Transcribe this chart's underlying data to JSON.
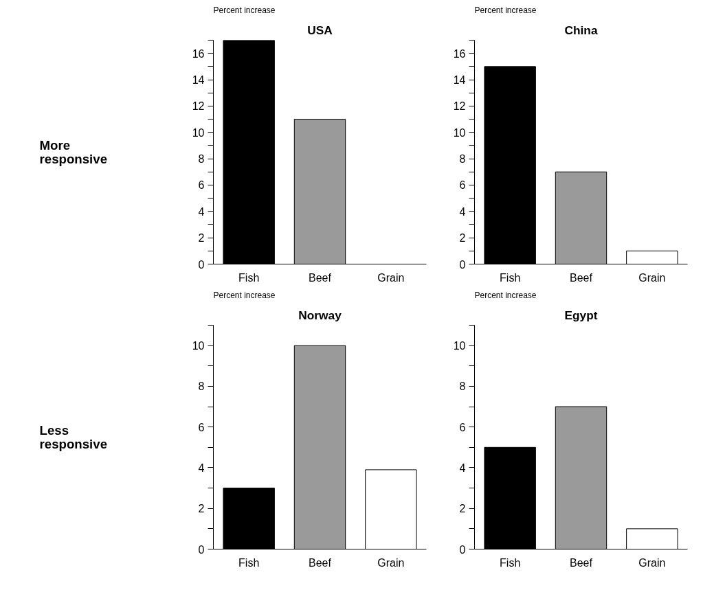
{
  "chart_data": [
    {
      "type": "other",
      "title": "More responsive"
    },
    {
      "type": "bar",
      "title": "USA",
      "ylabel": "Percent increase",
      "categories": [
        "Fish",
        "Beef",
        "Grain"
      ],
      "values": [
        17,
        11,
        null
      ],
      "colors": [
        "#000000",
        "#9a9a9a",
        null
      ],
      "ylim": [
        0,
        17
      ],
      "yticks": [
        0,
        {
          "value": 1,
          "label": null
        },
        2,
        {
          "value": 3,
          "label": null
        },
        4,
        {
          "value": 5,
          "label": null
        },
        6,
        {
          "value": 7,
          "label": null
        },
        8,
        {
          "value": 9,
          "label": null
        },
        10,
        {
          "value": 11,
          "label": null
        },
        12,
        {
          "value": 13,
          "label": null
        },
        14,
        {
          "value": 15,
          "label": null
        },
        16,
        {
          "value": 17,
          "label": null
        }
      ]
    },
    {
      "type": "bar",
      "title": "China",
      "ylabel": "Percent increase",
      "categories": [
        "Fish",
        "Beef",
        "Grain"
      ],
      "values": [
        15,
        7,
        1
      ],
      "colors": [
        "#000000",
        "#9a9a9a",
        "#ffffff"
      ],
      "ylim": [
        0,
        17
      ],
      "yticks": [
        0,
        {
          "value": 1,
          "label": null
        },
        2,
        {
          "value": 3,
          "label": null
        },
        4,
        {
          "value": 5,
          "label": null
        },
        6,
        {
          "value": 7,
          "label": null
        },
        8,
        {
          "value": 9,
          "label": null
        },
        10,
        {
          "value": 11,
          "label": null
        },
        12,
        {
          "value": 13,
          "label": null
        },
        14,
        {
          "value": 15,
          "label": null
        },
        16,
        {
          "value": 17,
          "label": null
        }
      ]
    },
    {
      "type": "other",
      "title": "Less responsive"
    },
    {
      "type": "bar",
      "title": "Norway",
      "ylabel": "Percent increase",
      "categories": [
        "Fish",
        "Beef",
        "Grain"
      ],
      "values": [
        3,
        10,
        3.9
      ],
      "colors": [
        "#000000",
        "#9a9a9a",
        "#ffffff"
      ],
      "ylim": [
        0,
        11
      ],
      "yticks": [
        0,
        {
          "value": 1,
          "label": null
        },
        2,
        {
          "value": 3,
          "label": null
        },
        4,
        {
          "value": 5,
          "label": null
        },
        6,
        {
          "value": 7,
          "label": null
        },
        8,
        {
          "value": 9,
          "label": null
        },
        10,
        {
          "value": 11,
          "label": null
        }
      ]
    },
    {
      "type": "bar",
      "title": "Egypt",
      "ylabel": "Percent increase",
      "categories": [
        "Fish",
        "Beef",
        "Grain"
      ],
      "values": [
        5,
        7,
        1
      ],
      "colors": [
        "#000000",
        "#9a9a9a",
        "#ffffff"
      ],
      "ylim": [
        0,
        11
      ],
      "yticks": [
        0,
        {
          "value": 1,
          "label": null
        },
        2,
        {
          "value": 3,
          "label": null
        },
        4,
        {
          "value": 5,
          "label": null
        },
        6,
        {
          "value": 7,
          "label": null
        },
        8,
        {
          "value": 9,
          "label": null
        },
        10,
        {
          "value": 11,
          "label": null
        }
      ]
    }
  ]
}
